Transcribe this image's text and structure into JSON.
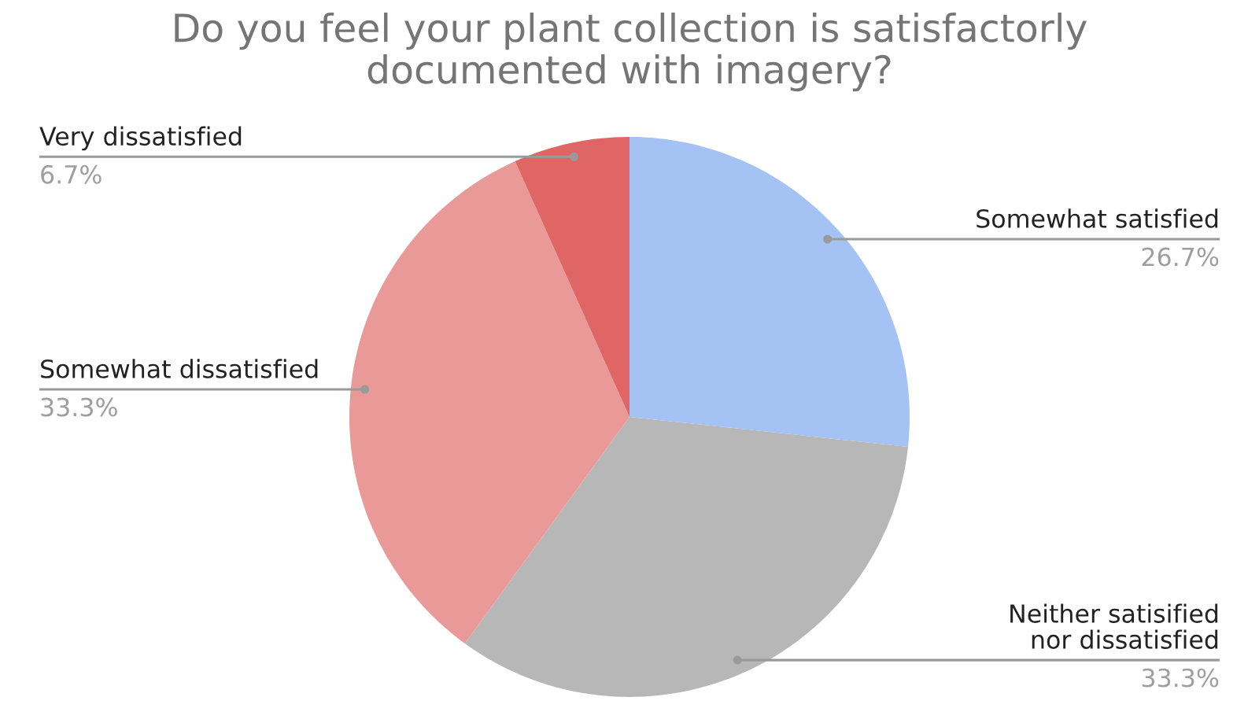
{
  "chart_data": {
    "type": "pie",
    "title": "Do you feel your plant collection is satisfactorly\ndocumented with imagery?",
    "categories": [
      "Somewhat satisfied",
      "Neither satisified\nnor dissatisfied",
      "Somewhat dissatisfied",
      "Very dissatisfied"
    ],
    "values": [
      26.7,
      33.3,
      33.3,
      6.7
    ],
    "colors": [
      "#a4c2f4",
      "#b7b7b7",
      "#ea9999",
      "#e06666"
    ],
    "value_labels": [
      "26.7%",
      "33.3%",
      "33.3%",
      "6.7%"
    ],
    "legend": false
  }
}
